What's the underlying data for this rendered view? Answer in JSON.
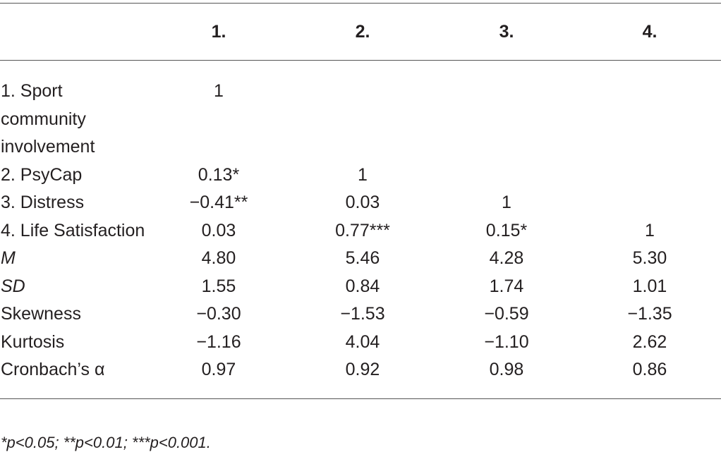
{
  "table": {
    "header": [
      "1.",
      "2.",
      "3.",
      "4."
    ],
    "rows": [
      {
        "label": "1. Sport community involvement",
        "cells": [
          "1"
        ]
      },
      {
        "label": "2. PsyCap",
        "cells": [
          "0.13*",
          "1"
        ]
      },
      {
        "label": "3. Distress",
        "cells": [
          "−0.41**",
          "0.03",
          "1"
        ]
      },
      {
        "label": "4. Life Satisfaction",
        "cells": [
          "0.03",
          "0.77***",
          "0.15*",
          "1"
        ]
      },
      {
        "label": "M",
        "italic": true,
        "cells": [
          "4.80",
          "5.46",
          "4.28",
          "5.30"
        ]
      },
      {
        "label": "SD",
        "italic": true,
        "cells": [
          "1.55",
          "0.84",
          "1.74",
          "1.01"
        ]
      },
      {
        "label": "Skewness",
        "cells": [
          "−0.30",
          "−1.53",
          "−0.59",
          "−1.35"
        ]
      },
      {
        "label": "Kurtosis",
        "cells": [
          "−1.16",
          "4.04",
          "−1.10",
          "2.62"
        ]
      },
      {
        "label": "Cronbach’s α",
        "cells": [
          "0.97",
          "0.92",
          "0.98",
          "0.86"
        ]
      }
    ],
    "footnote": "*p<0.05; **p<0.01; ***p<0.001."
  }
}
